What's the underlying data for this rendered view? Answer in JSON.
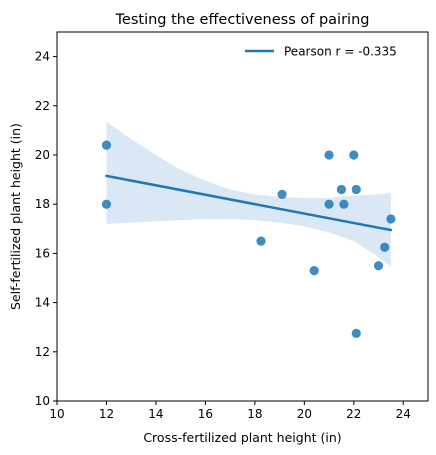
{
  "chart_data": {
    "type": "scatter",
    "title": "Testing the effectiveness of pairing",
    "xlabel": "Cross-fertilized plant height (in)",
    "ylabel": "Self-fertilized plant height (in)",
    "xlim": [
      10,
      25
    ],
    "ylim": [
      10,
      25
    ],
    "xticks": [
      10,
      12,
      14,
      16,
      18,
      20,
      22,
      24
    ],
    "yticks": [
      10,
      12,
      14,
      16,
      18,
      20,
      22,
      24
    ],
    "grid": false,
    "legend_position": "top-right",
    "legend_label": "Pearson r = -0.335",
    "point_color": "#1f77b4",
    "band_color": "#c6dbef",
    "points": [
      {
        "x": 12.0,
        "y": 20.4
      },
      {
        "x": 12.0,
        "y": 18.0
      },
      {
        "x": 18.25,
        "y": 16.5
      },
      {
        "x": 19.1,
        "y": 18.4
      },
      {
        "x": 20.4,
        "y": 15.3
      },
      {
        "x": 21.0,
        "y": 20.0
      },
      {
        "x": 21.0,
        "y": 18.0
      },
      {
        "x": 21.5,
        "y": 18.6
      },
      {
        "x": 21.6,
        "y": 18.0
      },
      {
        "x": 22.0,
        "y": 20.0
      },
      {
        "x": 22.1,
        "y": 18.6
      },
      {
        "x": 22.1,
        "y": 12.75
      },
      {
        "x": 23.0,
        "y": 15.5
      },
      {
        "x": 23.25,
        "y": 16.25
      },
      {
        "x": 23.5,
        "y": 17.4
      }
    ],
    "regression": {
      "x": [
        12.0,
        23.5
      ],
      "y": [
        19.15,
        16.95
      ]
    },
    "confidence_band": {
      "x": [
        12.0,
        13.0,
        14.0,
        15.0,
        16.0,
        17.0,
        18.0,
        19.0,
        20.0,
        21.0,
        22.0,
        23.0,
        23.5
      ],
      "upper": [
        21.35,
        20.65,
        20.0,
        19.4,
        18.95,
        18.6,
        18.4,
        18.3,
        18.25,
        18.25,
        18.35,
        18.4,
        18.45
      ],
      "lower": [
        17.2,
        17.25,
        17.3,
        17.35,
        17.4,
        17.4,
        17.35,
        17.25,
        17.1,
        16.85,
        16.5,
        15.85,
        15.45
      ]
    }
  }
}
